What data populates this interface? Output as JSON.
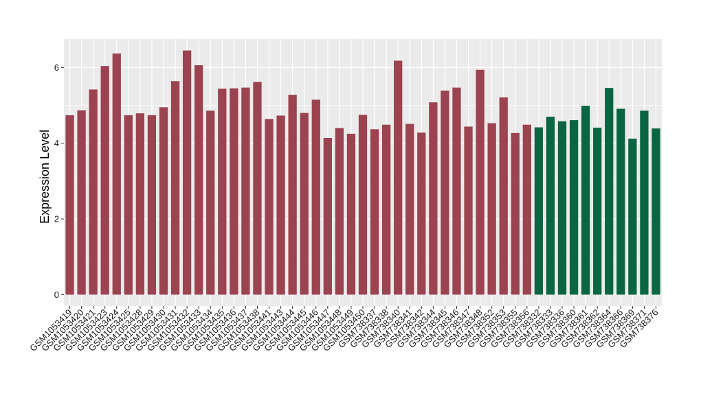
{
  "chart_data": {
    "type": "bar",
    "title": "",
    "xlabel": "",
    "ylabel": "Expression Level",
    "ylim": [
      -0.3,
      6.75
    ],
    "yticks": [
      0,
      2,
      4,
      6
    ],
    "grid": true,
    "legend": "none",
    "colors": {
      "group1": "#9b4350",
      "group2": "#0a6642",
      "panel": "#ebebeb",
      "gridline": "#ffffff"
    },
    "categories": [
      "GSM1053419",
      "GSM1053420",
      "GSM1053421",
      "GSM1053423",
      "GSM1053424",
      "GSM1053425",
      "GSM1053428",
      "GSM1053429",
      "GSM1053430",
      "GSM1053431",
      "GSM1053432",
      "GSM1053433",
      "GSM1053434",
      "GSM1053435",
      "GSM1053436",
      "GSM1053437",
      "GSM1053438",
      "GSM1053441",
      "GSM1053443",
      "GSM1053444",
      "GSM1053445",
      "GSM1053446",
      "GSM1053447",
      "GSM1053448",
      "GSM1053449",
      "GSM1053450",
      "GSM738337",
      "GSM738338",
      "GSM738340",
      "GSM738341",
      "GSM738342",
      "GSM738344",
      "GSM738345",
      "GSM738346",
      "GSM738347",
      "GSM738348",
      "GSM738352",
      "GSM738353",
      "GSM738355",
      "GSM738356",
      "GSM738332",
      "GSM738333",
      "GSM738336",
      "GSM738360",
      "GSM738361",
      "GSM738362",
      "GSM738364",
      "GSM738366",
      "GSM738369",
      "GSM738371",
      "GSM738376"
    ],
    "values": [
      4.74,
      4.87,
      5.42,
      6.04,
      6.37,
      4.74,
      4.79,
      4.74,
      4.95,
      5.64,
      6.45,
      6.06,
      4.86,
      5.44,
      5.45,
      5.47,
      5.62,
      4.64,
      4.73,
      5.28,
      4.8,
      5.15,
      4.14,
      4.4,
      4.25,
      4.75,
      4.37,
      4.49,
      6.18,
      4.51,
      4.28,
      5.08,
      5.39,
      5.47,
      4.44,
      5.94,
      4.53,
      5.21,
      4.27,
      4.49,
      4.42,
      4.7,
      4.58,
      4.61,
      4.99,
      4.41,
      5.46,
      4.91,
      4.12,
      4.86,
      4.39
    ],
    "groups": [
      "group1",
      "group1",
      "group1",
      "group1",
      "group1",
      "group1",
      "group1",
      "group1",
      "group1",
      "group1",
      "group1",
      "group1",
      "group1",
      "group1",
      "group1",
      "group1",
      "group1",
      "group1",
      "group1",
      "group1",
      "group1",
      "group1",
      "group1",
      "group1",
      "group1",
      "group1",
      "group1",
      "group1",
      "group1",
      "group1",
      "group1",
      "group1",
      "group1",
      "group1",
      "group1",
      "group1",
      "group1",
      "group1",
      "group1",
      "group1",
      "group2",
      "group2",
      "group2",
      "group2",
      "group2",
      "group2",
      "group2",
      "group2",
      "group2",
      "group2",
      "group2"
    ]
  }
}
